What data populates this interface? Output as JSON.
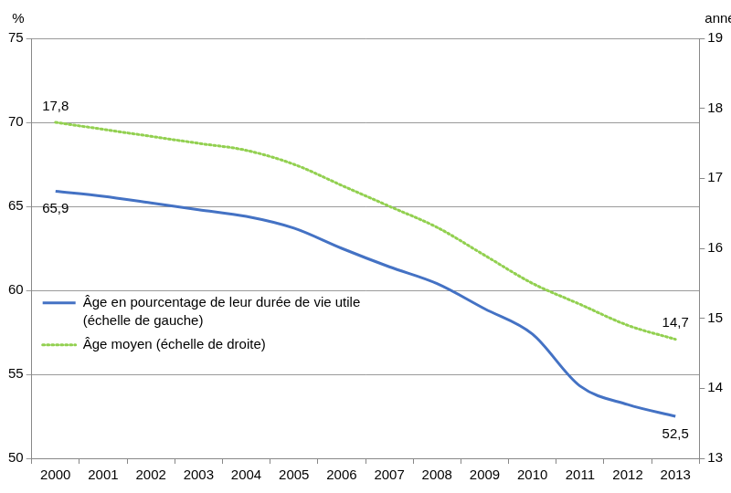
{
  "chart_data": {
    "type": "line",
    "categories": [
      "2000",
      "2001",
      "2002",
      "2003",
      "2004",
      "2005",
      "2006",
      "2007",
      "2008",
      "2009",
      "2010",
      "2011",
      "2012",
      "2013"
    ],
    "y_label": "%",
    "y2_label": "années",
    "ylim": [
      50,
      75
    ],
    "yticks": [
      50,
      55,
      60,
      65,
      70,
      75
    ],
    "y2lim": [
      13,
      19
    ],
    "y2ticks": [
      13,
      14,
      15,
      16,
      17,
      18,
      19
    ],
    "grid": true,
    "legend": "left",
    "series": [
      {
        "name": "Âge en pourcentage de leur durée de vie utile (échelle de gauche)",
        "color": "#4472c4",
        "line_style": "solid",
        "axis": "y",
        "values": [
          65.9,
          65.6,
          65.2,
          64.8,
          64.4,
          63.7,
          62.5,
          61.4,
          60.4,
          58.9,
          57.4,
          54.3,
          53.2,
          52.5
        ],
        "value_labels": [
          "65,9",
          null,
          null,
          null,
          null,
          null,
          null,
          null,
          null,
          null,
          null,
          null,
          null,
          "52,5"
        ]
      },
      {
        "name": "Âge moyen (échelle de droite)",
        "color": "#92d050",
        "line_style": "dotted",
        "axis": "y2",
        "values": [
          17.8,
          17.7,
          17.6,
          17.5,
          17.4,
          17.2,
          16.9,
          16.6,
          16.3,
          15.9,
          15.5,
          15.2,
          14.9,
          14.7
        ],
        "value_labels": [
          "17,8",
          null,
          null,
          null,
          null,
          null,
          null,
          null,
          null,
          null,
          null,
          null,
          null,
          "14,7"
        ]
      }
    ]
  }
}
